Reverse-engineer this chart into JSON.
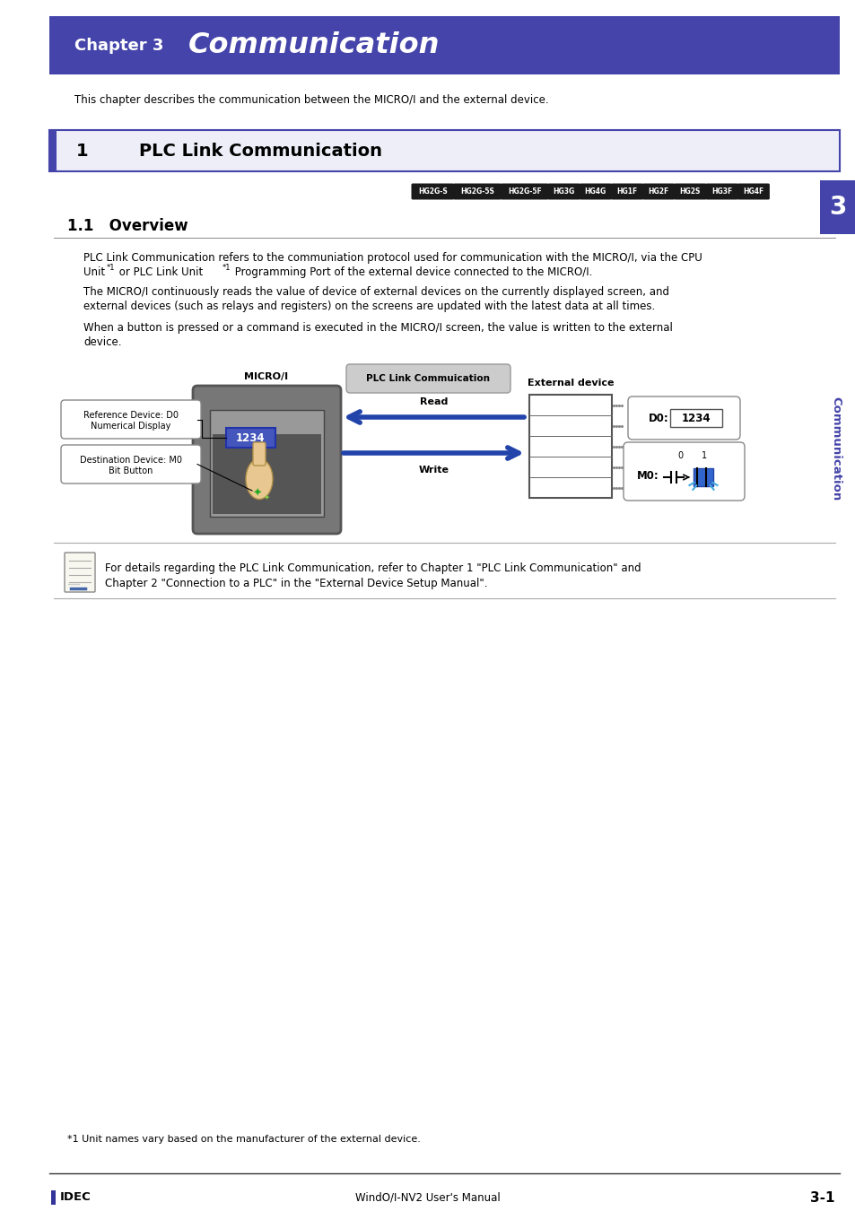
{
  "page_bg": "#ffffff",
  "header_bg": "#4444aa",
  "header_text": "Chapter 3",
  "header_title": "Communication",
  "section_bg": "#eeeef8",
  "section_border": "#4444aa",
  "section_num": "1",
  "section_title": "PLC Link Communication",
  "device_tags": [
    "HG2G-S",
    "HG2G-5S",
    "HG2G-5F",
    "HG3G",
    "HG4G",
    "HG1F",
    "HG2F",
    "HG2S",
    "HG3F",
    "HG4F"
  ],
  "subsection": "1.1   Overview",
  "body_line1": "PLC Link Communication refers to the communiation protocol used for communication with the MICRO/I, via the CPU",
  "body_line2": "Unit",
  "body_line2b": " or PLC Link Unit",
  "body_line2c": " Programming Port of the external device connected to the MICRO/I.",
  "body_line3": "The MICRO/I continuously reads the value of device of external devices on the currently displayed screen, and",
  "body_line4": "external devices (such as relays and registers) on the screens are updated with the latest data at all times.",
  "body_line5": "When a button is pressed or a command is executed in the MICRO/I screen, the value is written to the external",
  "body_line6": "device.",
  "note_line1": "For details regarding the PLC Link Communication, refer to Chapter 1 \"PLC Link Communication\" and",
  "note_line2": "Chapter 2 \"Connection to a PLC\" in the \"External Device Setup Manual\".",
  "footer_center": "WindO/I-NV2 User's Manual",
  "footer_right": "3-1",
  "sidebar_num": "3",
  "sidebar_label": "Communication",
  "footnote": "*1 Unit names vary based on the manufacturer of the external device."
}
